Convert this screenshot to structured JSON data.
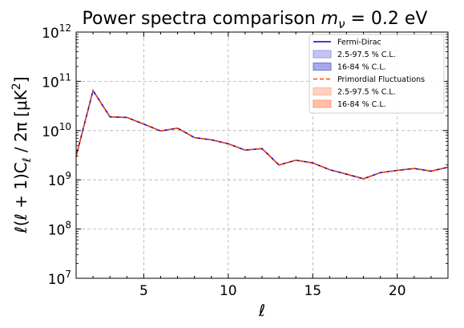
{
  "chart_data": {
    "type": "line",
    "title": "Power spectra comparison mν = 0.2 eV",
    "title_parts": {
      "prefix": "Power spectra comparison ",
      "m": "m",
      "sub": "ν",
      "suffix": " = 0.2 eV"
    },
    "xlabel": "ℓ",
    "ylabel": "ℓ(ℓ + 1)Cℓ / 2π [μK²]",
    "ylabel_parts": {
      "a": "ℓ(ℓ + 1)C",
      "sub": "ℓ",
      "b": " / 2π [μK",
      "sup": "2",
      "c": "]"
    },
    "x_scale": "linear",
    "y_scale": "log",
    "xlim": [
      1,
      23
    ],
    "ylim": [
      10000000,
      1000000000000
    ],
    "x_ticks": [
      5,
      10,
      15,
      20
    ],
    "x_tick_labels": [
      "5",
      "10",
      "15",
      "20"
    ],
    "y_ticks": [
      10000000,
      100000000,
      1000000000,
      10000000000,
      100000000000,
      1000000000000
    ],
    "y_tick_labels": [
      {
        "base": "10",
        "exp": "7"
      },
      {
        "base": "10",
        "exp": "8"
      },
      {
        "base": "10",
        "exp": "9"
      },
      {
        "base": "10",
        "exp": "10"
      },
      {
        "base": "10",
        "exp": "11"
      },
      {
        "base": "10",
        "exp": "12"
      }
    ],
    "grid": true,
    "legend_position": "top-right",
    "x": [
      1,
      2,
      3,
      4,
      5,
      6,
      7,
      8,
      9,
      10,
      11,
      12,
      13,
      14,
      15,
      16,
      17,
      18,
      19,
      20,
      21,
      22,
      23
    ],
    "series": [
      {
        "name": "Fermi-Dirac",
        "color": "#0000cc",
        "linestyle": "solid",
        "values": [
          3000000000,
          65000000000,
          19000000000,
          18500000000,
          13500000000,
          9800000000,
          11200000000,
          7200000000,
          6500000000,
          5400000000,
          4000000000,
          4300000000,
          2000000000,
          2500000000,
          2200000000,
          1600000000,
          1300000000,
          1050000000,
          1400000000,
          1550000000,
          1700000000,
          1500000000,
          1800000000
        ]
      },
      {
        "name": "Primordial Fluctuations",
        "color": "#ff4500",
        "linestyle": "dashed",
        "values": [
          3000000000,
          65000000000,
          19000000000,
          18500000000,
          13500000000,
          9800000000,
          11200000000,
          7200000000,
          6500000000,
          5400000000,
          4000000000,
          4300000000,
          2000000000,
          2500000000,
          2200000000,
          1600000000,
          1300000000,
          1050000000,
          1400000000,
          1550000000,
          1700000000,
          1500000000,
          1800000000
        ]
      }
    ],
    "bands": [
      {
        "name": "2.5-97.5 % C.L.",
        "color": "#8c8cff",
        "opacity": 0.5,
        "series": "Fermi-Dirac"
      },
      {
        "name": "16-84 % C.L.",
        "color": "#5a5ad8",
        "opacity": 0.5,
        "series": "Fermi-Dirac"
      },
      {
        "name": "2.5-97.5 % C.L.",
        "color": "#ffa07a",
        "opacity": 0.5,
        "series": "Primordial Fluctuations"
      },
      {
        "name": "16-84 % C.L.",
        "color": "#ff8c69",
        "opacity": 0.6,
        "series": "Primordial Fluctuations"
      }
    ],
    "legend": [
      {
        "label": "Fermi-Dirac",
        "kind": "line",
        "color": "#0000cc",
        "dash": ""
      },
      {
        "label": "2.5-97.5 % C.L.",
        "kind": "patch",
        "color": "#c4c4f4",
        "edge": "#9a9ae6"
      },
      {
        "label": "16-84 % C.L.",
        "kind": "patch",
        "color": "#a8a8ec",
        "edge": "#7474d4"
      },
      {
        "label": "Primordial Fluctuations",
        "kind": "line",
        "color": "#ff4500",
        "dash": "5,3"
      },
      {
        "label": "2.5-97.5 % C.L.",
        "kind": "patch",
        "color": "#ffd2c2",
        "edge": "#ffb396"
      },
      {
        "label": "16-84 % C.L.",
        "kind": "patch",
        "color": "#ffc0a8",
        "edge": "#ff9a76"
      }
    ]
  }
}
